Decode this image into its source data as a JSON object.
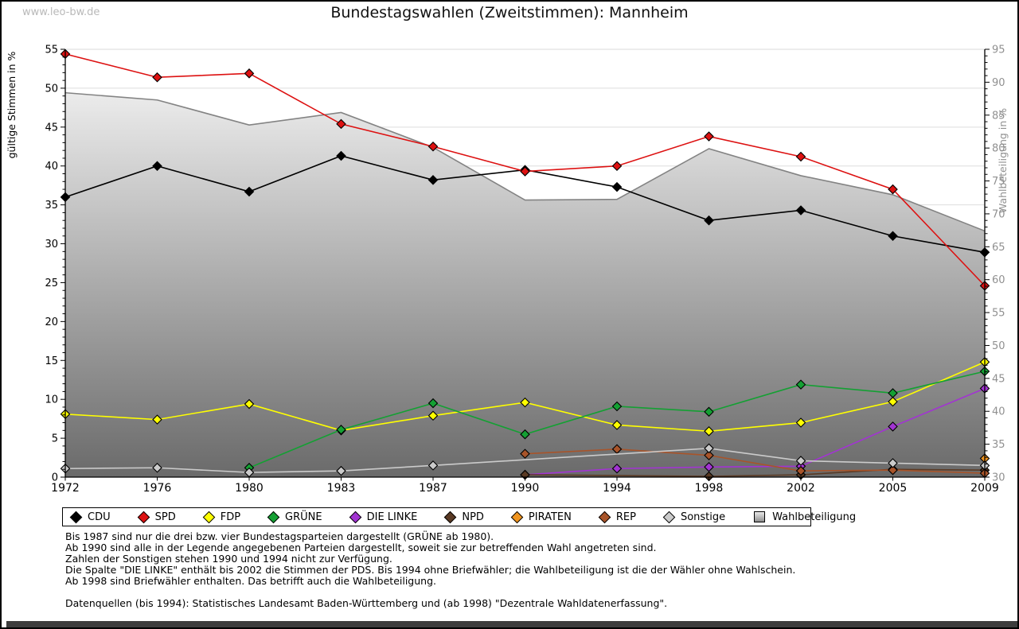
{
  "watermark": "www.leo-bw.de",
  "title": "Bundestagswahlen (Zweitstimmen): Mannheim",
  "chart_data": {
    "type": "line",
    "categories": [
      "1972",
      "1976",
      "1980",
      "1983",
      "1987",
      "1990",
      "1994",
      "1998",
      "2002",
      "2005",
      "2009"
    ],
    "left_axis": {
      "label": "gültige Stimmen in %",
      "min": 0,
      "max": 55,
      "tick_step": 5,
      "minor_step": 1
    },
    "right_axis": {
      "label": "Wahlbeteiligung in %",
      "min": 30,
      "max": 95,
      "tick_step": 5,
      "minor_step": 1
    },
    "grid": true,
    "legend_position": "bottom",
    "colors": {
      "grid": "#dedede",
      "axis": "#000000",
      "right_axis_text": "#909090",
      "area_fill_top": "#fafafa",
      "area_fill_bottom": "#6a6a6a",
      "area_stroke": "#838383"
    },
    "series": [
      {
        "name": "CDU",
        "color": "#000000",
        "marker": "diamond",
        "axis": "left",
        "values": [
          36.0,
          40.0,
          36.7,
          41.3,
          38.2,
          39.5,
          37.3,
          33.0,
          34.3,
          31.0,
          28.9
        ]
      },
      {
        "name": "SPD",
        "color": "#dd1111",
        "marker": "diamond",
        "axis": "left",
        "values": [
          54.4,
          51.4,
          51.9,
          45.4,
          42.5,
          39.3,
          40.0,
          43.8,
          41.2,
          37.0,
          24.6
        ]
      },
      {
        "name": "FDP",
        "color": "#ffff00",
        "marker": "diamond",
        "axis": "left",
        "values": [
          8.1,
          7.4,
          9.4,
          6.0,
          7.9,
          9.6,
          6.7,
          5.9,
          7.0,
          9.7,
          14.8
        ]
      },
      {
        "name": "GRÜNE",
        "color": "#14a033",
        "marker": "diamond",
        "axis": "left",
        "values": [
          null,
          null,
          1.2,
          6.1,
          9.5,
          5.5,
          9.1,
          8.4,
          11.9,
          10.8,
          13.6
        ]
      },
      {
        "name": "DIE LINKE",
        "color": "#a234d2",
        "marker": "diamond",
        "axis": "left",
        "values": [
          null,
          null,
          null,
          null,
          null,
          0.3,
          1.1,
          1.3,
          1.4,
          6.5,
          11.4
        ]
      },
      {
        "name": "NPD",
        "color": "#5a3a24",
        "marker": "diamond",
        "axis": "left",
        "values": [
          null,
          null,
          null,
          null,
          null,
          0.3,
          null,
          0.1,
          0.3,
          1.0,
          0.9
        ]
      },
      {
        "name": "PIRATEN",
        "color": "#f0941e",
        "marker": "diamond",
        "axis": "left",
        "values": [
          null,
          null,
          null,
          null,
          null,
          null,
          null,
          null,
          null,
          null,
          2.4
        ]
      },
      {
        "name": "REP",
        "color": "#a8542a",
        "marker": "diamond",
        "axis": "left",
        "values": [
          null,
          null,
          null,
          null,
          null,
          3.0,
          3.6,
          2.8,
          0.8,
          0.9,
          0.5
        ]
      },
      {
        "name": "Sonstige",
        "color": "#cbcbcb",
        "marker": "diamond",
        "axis": "left",
        "values": [
          1.1,
          1.2,
          0.6,
          0.8,
          1.5,
          null,
          null,
          3.7,
          2.1,
          1.8,
          1.5
        ]
      },
      {
        "name": "Wahlbeteiligung",
        "area": true,
        "axis": "right",
        "marker": "square",
        "values": [
          88.4,
          87.3,
          83.5,
          85.4,
          80.1,
          72.1,
          72.2,
          79.9,
          75.8,
          72.9,
          67.4
        ]
      }
    ]
  },
  "notes": [
    "Bis 1987 sind nur die drei bzw. vier Bundestagsparteien dargestellt (GRÜNE ab 1980).",
    "Ab 1990 sind alle in der Legende angegebenen Parteien dargestellt, soweit sie zur betreffenden Wahl angetreten sind.",
    "Zahlen der Sonstigen stehen 1990 und 1994 nicht zur Verfügung.",
    "Die Spalte \"DIE LINKE\" enthält bis 2002 die Stimmen der PDS. Bis 1994 ohne Briefwähler; die Wahlbeteiligung ist die der Wähler ohne Wahlschein.",
    "Ab 1998 sind Briefwähler enthalten. Das betrifft auch die Wahlbeteiligung."
  ],
  "source": "Datenquellen (bis 1994): Statistisches Landesamt Baden-Württemberg und (ab 1998) \"Dezentrale Wahldatenerfassung\"."
}
